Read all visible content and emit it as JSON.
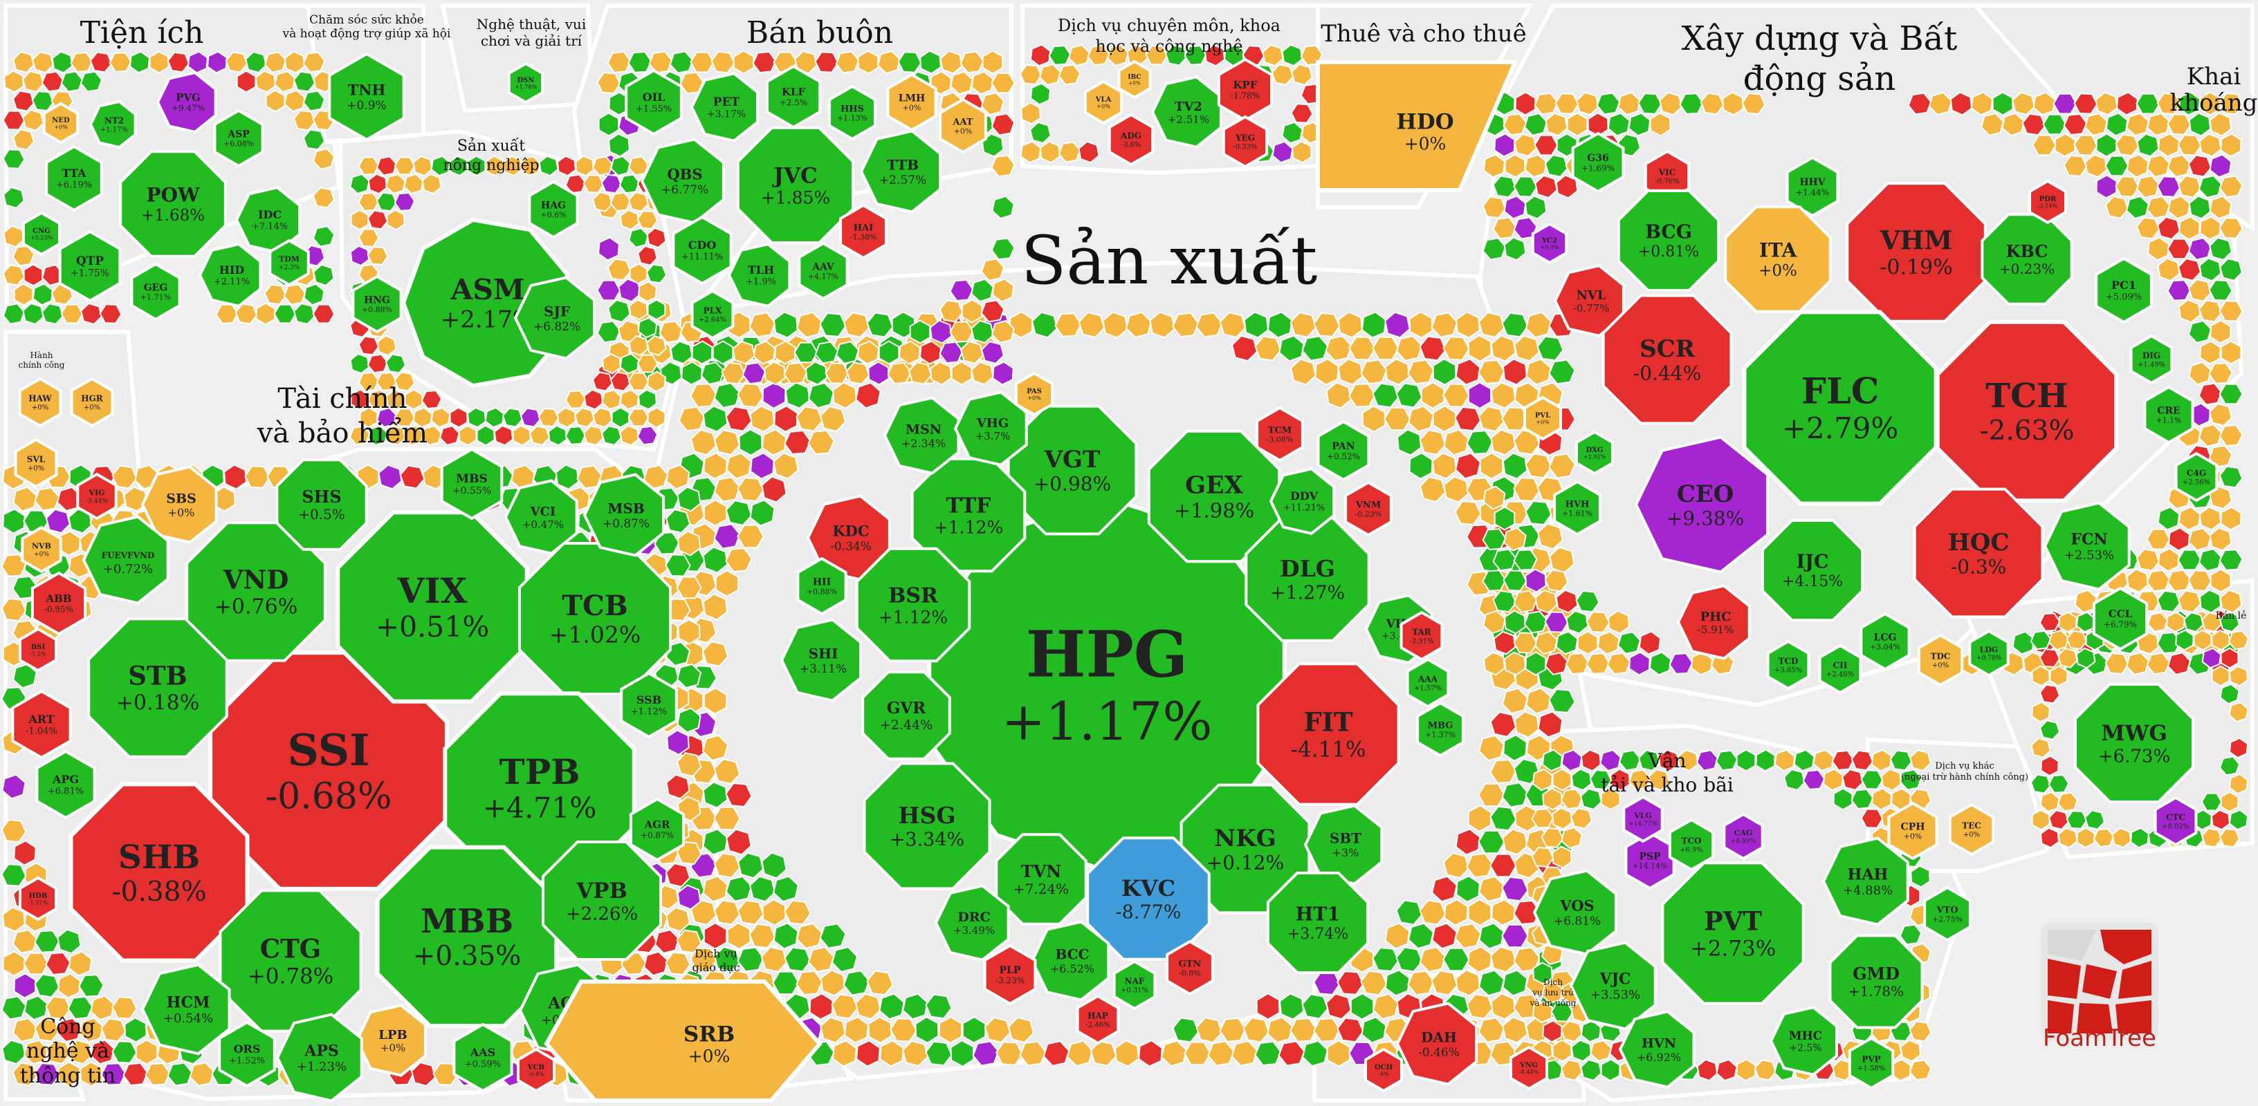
{
  "chart_data": {
    "type": "treemap",
    "colors": {
      "positive": "#22bb22",
      "negative": "#e52f2f",
      "unchanged": "#f5b63f",
      "ceiling": "#a526d1",
      "floor": "#3f9ed9",
      "tile_text": "#222222",
      "background": "#efefef"
    },
    "groups": [
      {
        "name": "Tiện ích",
        "tickers": [
          {
            "t": "PVG",
            "v": "+9.47%",
            "s": "ceiling"
          },
          {
            "t": "NED",
            "v": "+0%",
            "s": "unchanged"
          },
          {
            "t": "NT2",
            "v": "+1.17%",
            "s": "positive"
          },
          {
            "t": "ASP",
            "v": "+6.08%",
            "s": "positive"
          },
          {
            "t": "TTA",
            "v": "+6.19%",
            "s": "positive"
          },
          {
            "t": "POW",
            "v": "+1.68%",
            "s": "positive"
          },
          {
            "t": "IDC",
            "v": "+7.14%",
            "s": "positive"
          },
          {
            "t": "CNG",
            "v": "+5.23%",
            "s": "positive"
          },
          {
            "t": "QTP",
            "v": "+1.75%",
            "s": "positive"
          },
          {
            "t": "HID",
            "v": "+2.11%",
            "s": "positive"
          },
          {
            "t": "TDM",
            "v": "+2.3%",
            "s": "positive"
          },
          {
            "t": "GEG",
            "v": "+1.71%",
            "s": "positive"
          }
        ]
      },
      {
        "name": "Chăm sóc sức khỏe và hoạt động trợ giúp xã hội",
        "tickers": [
          {
            "t": "TNH",
            "v": "+0.9%",
            "s": "positive"
          }
        ]
      },
      {
        "name": "Nghệ thuật, vui chơi và giải trí",
        "tickers": [
          {
            "t": "DSN",
            "v": "+1.78%",
            "s": "positive"
          }
        ]
      },
      {
        "name": "Bán buôn",
        "tickers": [
          {
            "t": "OIL",
            "v": "+1.55%",
            "s": "positive"
          },
          {
            "t": "PET",
            "v": "+3.17%",
            "s": "positive"
          },
          {
            "t": "KLF",
            "v": "+2.5%",
            "s": "positive"
          },
          {
            "t": "LMH",
            "v": "+0%",
            "s": "unchanged"
          },
          {
            "t": "HHS",
            "v": "+1.13%",
            "s": "positive"
          },
          {
            "t": "AAT",
            "v": "+0%",
            "s": "unchanged"
          },
          {
            "t": "QBS",
            "v": "+6.77%",
            "s": "positive"
          },
          {
            "t": "JVC",
            "v": "+1.85%",
            "s": "positive"
          },
          {
            "t": "TTB",
            "v": "+2.57%",
            "s": "positive"
          },
          {
            "t": "CDO",
            "v": "+11.11%",
            "s": "positive"
          },
          {
            "t": "TLH",
            "v": "+1.9%",
            "s": "positive"
          },
          {
            "t": "HAI",
            "v": "-1.38%",
            "s": "negative"
          },
          {
            "t": "AAV",
            "v": "+4.17%",
            "s": "positive"
          },
          {
            "t": "PLX",
            "v": "+2.64%",
            "s": "positive"
          }
        ]
      },
      {
        "name": "Dịch vụ chuyên môn, khoa học và công nghệ",
        "tickers": [
          {
            "t": "IBC",
            "v": "+0%",
            "s": "unchanged"
          },
          {
            "t": "VLA",
            "v": "+0%",
            "s": "unchanged"
          },
          {
            "t": "TV2",
            "v": "+2.51%",
            "s": "positive"
          },
          {
            "t": "KPF",
            "v": "-1.78%",
            "s": "negative"
          },
          {
            "t": "ADG",
            "v": "-3.6%",
            "s": "negative"
          },
          {
            "t": "YEG",
            "v": "-0.33%",
            "s": "negative"
          }
        ]
      },
      {
        "name": "Thuê và cho thuê",
        "tickers": [
          {
            "t": "HDO",
            "v": "+0%",
            "s": "unchanged"
          }
        ]
      },
      {
        "name": "Xây dựng và Bất động sản",
        "tickers": [
          {
            "t": "G36",
            "v": "+1.69%",
            "s": "positive"
          },
          {
            "t": "VIC",
            "v": "-0.76%",
            "s": "negative"
          },
          {
            "t": "HHV",
            "v": "+1.44%",
            "s": "positive"
          },
          {
            "t": "BCG",
            "v": "+0.81%",
            "s": "positive"
          },
          {
            "t": "ITA",
            "v": "+0%",
            "s": "unchanged"
          },
          {
            "t": "VHM",
            "v": "-0.19%",
            "s": "negative"
          },
          {
            "t": "KBC",
            "v": "+0.23%",
            "s": "positive"
          },
          {
            "t": "PDR",
            "v": "-2.14%",
            "s": "negative"
          },
          {
            "t": "YC2",
            "v": "+9.9%",
            "s": "ceiling"
          },
          {
            "t": "NVL",
            "v": "-0.77%",
            "s": "negative"
          },
          {
            "t": "PC1",
            "v": "+5.09%",
            "s": "positive"
          },
          {
            "t": "SCR",
            "v": "-0.44%",
            "s": "negative"
          },
          {
            "t": "FLC",
            "v": "+2.79%",
            "s": "positive"
          },
          {
            "t": "TCH",
            "v": "-2.63%",
            "s": "negative"
          },
          {
            "t": "DIG",
            "v": "+1.49%",
            "s": "positive"
          },
          {
            "t": "CRE",
            "v": "+1.1%",
            "s": "positive"
          },
          {
            "t": "PVL",
            "v": "+0%",
            "s": "unchanged"
          },
          {
            "t": "CEO",
            "v": "+9.38%",
            "s": "ceiling"
          },
          {
            "t": "C4G",
            "v": "+2.56%",
            "s": "positive"
          },
          {
            "t": "HVH",
            "v": "+1.61%",
            "s": "positive"
          },
          {
            "t": "HQC",
            "v": "-0.3%",
            "s": "negative"
          },
          {
            "t": "IJC",
            "v": "+4.15%",
            "s": "positive"
          },
          {
            "t": "FCN",
            "v": "+2.53%",
            "s": "positive"
          },
          {
            "t": "PHC",
            "v": "-5.91%",
            "s": "negative"
          },
          {
            "t": "CCL",
            "v": "+6.79%",
            "s": "positive"
          },
          {
            "t": "LCG",
            "v": "+3.04%",
            "s": "positive"
          },
          {
            "t": "TDC",
            "v": "+0%",
            "s": "unchanged"
          },
          {
            "t": "TCD",
            "v": "+3.85%",
            "s": "positive"
          },
          {
            "t": "CII",
            "v": "+2.46%",
            "s": "positive"
          },
          {
            "t": "LDG",
            "v": "+0.78%",
            "s": "positive"
          },
          {
            "t": "DXG",
            "v": "+2.92%",
            "s": "positive"
          }
        ]
      },
      {
        "name": "Khai khoáng",
        "tickers": []
      },
      {
        "name": "Sản xuất",
        "tickers": [
          {
            "t": "HPG",
            "v": "+1.17%",
            "s": "positive"
          },
          {
            "t": "VGT",
            "v": "+0.98%",
            "s": "positive"
          },
          {
            "t": "GEX",
            "v": "+1.98%",
            "s": "positive"
          },
          {
            "t": "TTF",
            "v": "+1.12%",
            "s": "positive"
          },
          {
            "t": "MSN",
            "v": "+2.34%",
            "s": "positive"
          },
          {
            "t": "VHG",
            "v": "+3.7%",
            "s": "positive"
          },
          {
            "t": "PAS",
            "v": "+0%",
            "s": "unchanged"
          },
          {
            "t": "KDC",
            "v": "-0.34%",
            "s": "negative"
          },
          {
            "t": "BSR",
            "v": "+1.12%",
            "s": "positive"
          },
          {
            "t": "DLG",
            "v": "+1.27%",
            "s": "positive"
          },
          {
            "t": "DDV",
            "v": "+11.21%",
            "s": "positive"
          },
          {
            "t": "VNM",
            "v": "-0.23%",
            "s": "negative"
          },
          {
            "t": "TCM",
            "v": "-3.08%",
            "s": "negative"
          },
          {
            "t": "PAN",
            "v": "+0.52%",
            "s": "positive"
          },
          {
            "t": "SHI",
            "v": "+3.11%",
            "s": "positive"
          },
          {
            "t": "FIT",
            "v": "-4.11%",
            "s": "negative"
          },
          {
            "t": "VHC",
            "v": "+3.48%",
            "s": "positive"
          },
          {
            "t": "GVR",
            "v": "+2.44%",
            "s": "positive"
          },
          {
            "t": "HSG",
            "v": "+3.34%",
            "s": "positive"
          },
          {
            "t": "NKG",
            "v": "+0.12%",
            "s": "positive"
          },
          {
            "t": "SBT",
            "v": "+3%",
            "s": "positive"
          },
          {
            "t": "KVC",
            "v": "-8.77%",
            "s": "floor"
          },
          {
            "t": "TVN",
            "v": "+7.24%",
            "s": "positive"
          },
          {
            "t": "DRC",
            "v": "+3.49%",
            "s": "positive"
          },
          {
            "t": "BCC",
            "v": "+6.52%",
            "s": "positive"
          },
          {
            "t": "HT1",
            "v": "+3.74%",
            "s": "positive"
          },
          {
            "t": "GTN",
            "v": "-0.8%",
            "s": "negative"
          },
          {
            "t": "HAP",
            "v": "-2.46%",
            "s": "negative"
          },
          {
            "t": "NAF",
            "v": "+0.31%",
            "s": "positive"
          },
          {
            "t": "TAR",
            "v": "-2.91%",
            "s": "negative"
          },
          {
            "t": "AAA",
            "v": "+1.57%",
            "s": "positive"
          },
          {
            "t": "MBG",
            "v": "+1.37%",
            "s": "positive"
          },
          {
            "t": "PLP",
            "v": "-3.23%",
            "s": "negative"
          },
          {
            "t": "HII",
            "v": "+0.88%",
            "s": "positive"
          }
        ]
      },
      {
        "name": "Sản xuất nông nghiệp",
        "tickers": [
          {
            "t": "HAG",
            "v": "+0.6%",
            "s": "positive"
          },
          {
            "t": "ASM",
            "v": "+2.17%",
            "s": "positive"
          },
          {
            "t": "HNG",
            "v": "+0.88%",
            "s": "positive"
          },
          {
            "t": "SJF",
            "v": "+6.82%",
            "s": "positive"
          }
        ]
      },
      {
        "name": "Hành chính công",
        "tickers": [
          {
            "t": "HAW",
            "v": "+0%",
            "s": "unchanged"
          },
          {
            "t": "HGR",
            "v": "+0%",
            "s": "unchanged"
          },
          {
            "t": "SVL",
            "v": "+0%",
            "s": "unchanged"
          }
        ]
      },
      {
        "name": "Tài chính và bảo hiểm",
        "tickers": [
          {
            "t": "SSI",
            "v": "-0.68%",
            "s": "negative"
          },
          {
            "t": "VIX",
            "v": "+0.51%",
            "s": "positive"
          },
          {
            "t": "TCB",
            "v": "+1.02%",
            "s": "positive"
          },
          {
            "t": "TPB",
            "v": "+4.71%",
            "s": "positive"
          },
          {
            "t": "MBB",
            "v": "+0.35%",
            "s": "positive"
          },
          {
            "t": "SHB",
            "v": "-0.38%",
            "s": "negative"
          },
          {
            "t": "STB",
            "v": "+0.18%",
            "s": "positive"
          },
          {
            "t": "VND",
            "v": "+0.76%",
            "s": "positive"
          },
          {
            "t": "CTG",
            "v": "+0.78%",
            "s": "positive"
          },
          {
            "t": "SHS",
            "v": "+0.5%",
            "s": "positive"
          },
          {
            "t": "SBS",
            "v": "+0%",
            "s": "unchanged"
          },
          {
            "t": "MBS",
            "v": "+0.55%",
            "s": "positive"
          },
          {
            "t": "VCI",
            "v": "+0.47%",
            "s": "positive"
          },
          {
            "t": "MSB",
            "v": "+0.87%",
            "s": "positive"
          },
          {
            "t": "FUEVFVND",
            "v": "+0.72%",
            "s": "positive"
          },
          {
            "t": "VIG",
            "v": "-3.44%",
            "s": "negative"
          },
          {
            "t": "NVB",
            "v": "+0%",
            "s": "unchanged"
          },
          {
            "t": "ABB",
            "v": "-0.95%",
            "s": "negative"
          },
          {
            "t": "ART",
            "v": "-1.04%",
            "s": "negative"
          },
          {
            "t": "BSI",
            "v": "-1.2%",
            "s": "negative"
          },
          {
            "t": "APG",
            "v": "+6.81%",
            "s": "positive"
          },
          {
            "t": "VPB",
            "v": "+2.26%",
            "s": "positive"
          },
          {
            "t": "ACB",
            "v": "+0.93%",
            "s": "positive"
          },
          {
            "t": "HCM",
            "v": "+0.54%",
            "s": "positive"
          },
          {
            "t": "LPB",
            "v": "+0%",
            "s": "unchanged"
          },
          {
            "t": "APS",
            "v": "+1.23%",
            "s": "positive"
          },
          {
            "t": "AAS",
            "v": "+0.59%",
            "s": "positive"
          },
          {
            "t": "ORS",
            "v": "+1.52%",
            "s": "positive"
          },
          {
            "t": "SSB",
            "v": "+1.12%",
            "s": "positive"
          },
          {
            "t": "AGR",
            "v": "+0.87%",
            "s": "positive"
          },
          {
            "t": "VCB",
            "v": "-0.4%",
            "s": "negative"
          },
          {
            "t": "HDB",
            "v": "-1.31%",
            "s": "negative"
          }
        ]
      },
      {
        "name": "Công nghệ và thông tin",
        "tickers": []
      },
      {
        "name": "Dịch vụ giáo dục",
        "tickers": [
          {
            "t": "SRB",
            "v": "+0%",
            "s": "unchanged"
          }
        ]
      },
      {
        "name": "Dịch vụ lưu trú và ăn uống",
        "tickers": [
          {
            "t": "DAH",
            "v": "-0.46%",
            "s": "negative"
          },
          {
            "t": "OCH",
            "v": "-4%",
            "s": "negative"
          },
          {
            "t": "VNG",
            "v": "-4.44%",
            "s": "negative"
          }
        ]
      },
      {
        "name": "Vận tải và kho bãi",
        "tickers": [
          {
            "t": "PVT",
            "v": "+2.73%",
            "s": "positive"
          },
          {
            "t": "HAH",
            "v": "+4.88%",
            "s": "positive"
          },
          {
            "t": "GMD",
            "v": "+1.78%",
            "s": "positive"
          },
          {
            "t": "VOS",
            "v": "+6.81%",
            "s": "positive"
          },
          {
            "t": "VJC",
            "v": "+3.53%",
            "s": "positive"
          },
          {
            "t": "HVN",
            "v": "+6.92%",
            "s": "positive"
          },
          {
            "t": "MHC",
            "v": "+2.5%",
            "s": "positive"
          },
          {
            "t": "PSP",
            "v": "+14.14%",
            "s": "ceiling"
          },
          {
            "t": "VLG",
            "v": "+14.77%",
            "s": "ceiling"
          },
          {
            "t": "CAG",
            "v": "+8.89%",
            "s": "ceiling"
          },
          {
            "t": "TCO",
            "v": "+6.9%",
            "s": "positive"
          },
          {
            "t": "VTO",
            "v": "+2.75%",
            "s": "positive"
          },
          {
            "t": "PVP",
            "v": "+1.58%",
            "s": "positive"
          }
        ]
      },
      {
        "name": "Dịch vụ khác (ngoại trừ hành chính công)",
        "tickers": [
          {
            "t": "CPH",
            "v": "+0%",
            "s": "unchanged"
          },
          {
            "t": "TEC",
            "v": "+0%",
            "s": "unchanged"
          }
        ]
      },
      {
        "name": "Bán lẻ",
        "tickers": [
          {
            "t": "MWG",
            "v": "+6.73%",
            "s": "positive"
          },
          {
            "t": "CTC",
            "v": "+8.02%",
            "s": "ceiling"
          }
        ]
      }
    ]
  },
  "labels": {
    "tienich": "Tiện ích",
    "chamsoc": "Chăm sóc sức khỏe và hoạt động trợ giúp xã hội",
    "nghethuat": "Nghệ thuật, vui chơi và giải trí",
    "banbuon": "Bán buôn",
    "dichvucm": "Dịch vụ chuyên môn, khoa học và công nghệ",
    "thue": "Thuê và cho thuê",
    "xaydung": "Xây dựng và Bất động sản",
    "khaikhoang": "Khai khoáng",
    "sanxuat": "Sản xuất",
    "nongnghiep": "Sản xuất nông nghiệp",
    "hanhchinh": "Hành chính công",
    "taichinh": "Tài chính và bảo hiểm",
    "congnghe": "Công nghệ và thông tin",
    "giaoduc": "Dịch vụ giáo dục",
    "luutru": "Dịch vụ lưu trú và ăn uống",
    "vantai": "Vận tải và kho bãi",
    "dvkhac": "Dịch vụ khác (ngoại trừ hành chính công)",
    "banle": "Bán lẻ"
  },
  "logo": {
    "text": "FoamTree"
  }
}
